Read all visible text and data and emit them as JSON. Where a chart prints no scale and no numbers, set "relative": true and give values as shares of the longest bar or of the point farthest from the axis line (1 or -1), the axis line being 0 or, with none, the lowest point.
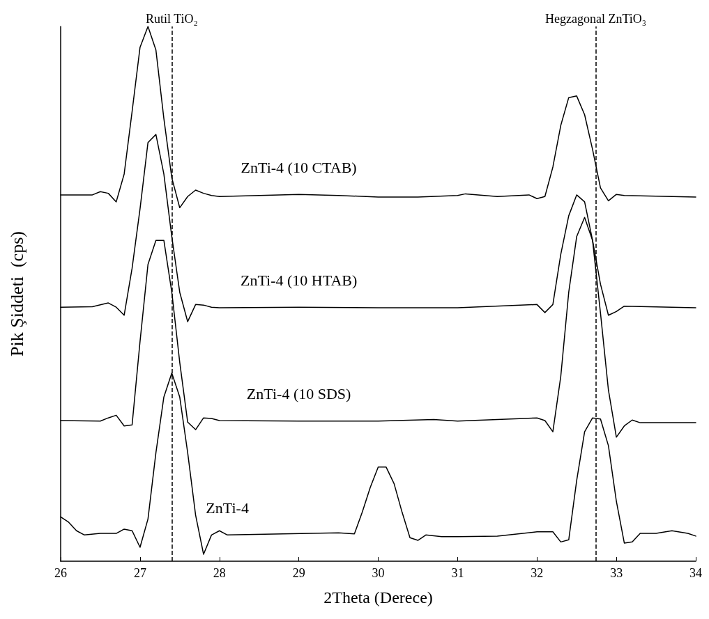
{
  "chart_data": {
    "type": "line",
    "relative": true,
    "xlabel": "2Theta (Derece)",
    "ylabel": "Pik Şiddeti  (cps)",
    "xlim": [
      26,
      34
    ],
    "xticks": [
      26,
      27,
      28,
      29,
      30,
      31,
      32,
      33,
      34
    ],
    "tick_labels": "x",
    "marker": "none",
    "line_style": "solid",
    "grid": false,
    "legend": false,
    "series": [
      {
        "name": "ZnTi-4 (10 CTAB)",
        "color": "#000000",
        "x": [
          26,
          26.4,
          26.5,
          26.6,
          26.7,
          26.8,
          26.9,
          27,
          27.1,
          27.2,
          27.3,
          27.4,
          27.5,
          27.6,
          27.7,
          27.8,
          27.9,
          28,
          29,
          29.5,
          30,
          30.5,
          31,
          31.1,
          31.5,
          31.9,
          32,
          32.1,
          32.2,
          32.3,
          32.4,
          32.5,
          32.6,
          32.7,
          32.8,
          32.9,
          33,
          33.1,
          34
        ],
        "values": [
          0.685,
          0.685,
          0.691,
          0.688,
          0.672,
          0.724,
          0.841,
          0.961,
          1,
          0.956,
          0.828,
          0.717,
          0.661,
          0.682,
          0.694,
          0.688,
          0.684,
          0.682,
          0.686,
          0.684,
          0.681,
          0.681,
          0.684,
          0.687,
          0.682,
          0.685,
          0.678,
          0.682,
          0.737,
          0.815,
          0.867,
          0.87,
          0.835,
          0.77,
          0.698,
          0.674,
          0.686,
          0.684,
          0.681
        ]
      },
      {
        "name": "ZnTi-4 (10 HTAB)",
        "color": "#000000",
        "x": [
          26,
          26.4,
          26.6,
          26.7,
          26.8,
          26.9,
          27,
          27.1,
          27.2,
          27.3,
          27.4,
          27.5,
          27.6,
          27.7,
          27.8,
          27.9,
          28,
          29,
          30,
          31,
          32,
          32.1,
          32.2,
          32.3,
          32.4,
          32.5,
          32.6,
          32.7,
          32.8,
          32.9,
          33,
          33.1,
          34
        ],
        "values": [
          0.475,
          0.476,
          0.483,
          0.475,
          0.46,
          0.548,
          0.659,
          0.783,
          0.798,
          0.724,
          0.607,
          0.503,
          0.448,
          0.48,
          0.479,
          0.475,
          0.474,
          0.475,
          0.474,
          0.474,
          0.48,
          0.465,
          0.48,
          0.574,
          0.646,
          0.685,
          0.672,
          0.6,
          0.518,
          0.46,
          0.467,
          0.477,
          0.474
        ]
      },
      {
        "name": "ZnTi-4 (10 SDS)",
        "color": "#000000",
        "x": [
          26,
          26.5,
          26.6,
          26.7,
          26.8,
          26.9,
          27,
          27.1,
          27.2,
          27.3,
          27.4,
          27.5,
          27.6,
          27.7,
          27.8,
          27.9,
          28,
          29,
          30,
          30.7,
          31,
          32,
          32.1,
          32.2,
          32.3,
          32.4,
          32.5,
          32.6,
          32.7,
          32.8,
          32.9,
          33,
          33.1,
          33.2,
          33.3,
          34
        ],
        "values": [
          0.263,
          0.262,
          0.268,
          0.273,
          0.253,
          0.255,
          0.411,
          0.555,
          0.6,
          0.6,
          0.503,
          0.372,
          0.26,
          0.246,
          0.268,
          0.267,
          0.263,
          0.262,
          0.262,
          0.265,
          0.262,
          0.268,
          0.263,
          0.242,
          0.346,
          0.503,
          0.607,
          0.643,
          0.6,
          0.464,
          0.32,
          0.232,
          0.253,
          0.264,
          0.259,
          0.259
        ]
      },
      {
        "name": "ZnTi-4",
        "color": "#000000",
        "x": [
          26,
          26.1,
          26.2,
          26.3,
          26.5,
          26.7,
          26.8,
          26.9,
          27,
          27.1,
          27.2,
          27.3,
          27.4,
          27.5,
          27.6,
          27.7,
          27.8,
          27.9,
          28,
          28.1,
          29.5,
          29.7,
          29.8,
          29.9,
          30,
          30.1,
          30.2,
          30.3,
          30.4,
          30.5,
          30.6,
          30.8,
          31,
          31.5,
          32,
          32.2,
          32.3,
          32.4,
          32.5,
          32.6,
          32.7,
          32.8,
          32.9,
          33,
          33.1,
          33.2,
          33.3,
          33.5,
          33.7,
          33.9,
          34
        ],
        "values": [
          0.083,
          0.073,
          0.057,
          0.049,
          0.052,
          0.052,
          0.06,
          0.057,
          0.026,
          0.079,
          0.203,
          0.307,
          0.352,
          0.307,
          0.203,
          0.086,
          0.013,
          0.049,
          0.057,
          0.049,
          0.053,
          0.051,
          0.092,
          0.138,
          0.176,
          0.176,
          0.145,
          0.092,
          0.044,
          0.039,
          0.049,
          0.046,
          0.046,
          0.047,
          0.055,
          0.055,
          0.036,
          0.04,
          0.151,
          0.242,
          0.268,
          0.266,
          0.216,
          0.112,
          0.034,
          0.036,
          0.052,
          0.052,
          0.057,
          0.052,
          0.047
        ]
      }
    ],
    "ref_lines": [
      {
        "axis": "x",
        "value": 27.4,
        "label": "Rutil TiO₂",
        "line_style": "dashed",
        "color": "#000000"
      },
      {
        "axis": "x",
        "value": 32.74,
        "label": "Hegzagonal ZnTiO₃",
        "line_style": "dashed",
        "color": "#000000"
      }
    ]
  }
}
